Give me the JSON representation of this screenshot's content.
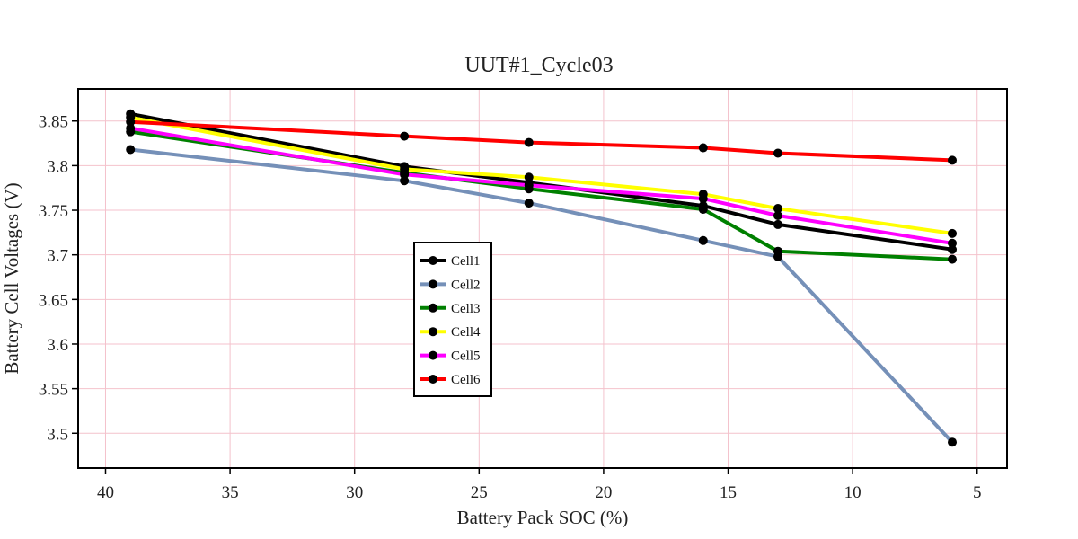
{
  "chart_data": {
    "type": "line",
    "title": "UUT#1_Cycle03",
    "xlabel": "Battery Pack SOC (%)",
    "ylabel": "Battery Cell Voltages (V)",
    "xlim": [
      41.1,
      3.8
    ],
    "ylim": [
      3.461,
      3.886
    ],
    "x_reversed": true,
    "xticks": [
      40,
      35,
      30,
      25,
      20,
      15,
      10,
      5
    ],
    "yticks": [
      3.5,
      3.55,
      3.6,
      3.65,
      3.7,
      3.75,
      3.8,
      3.85
    ],
    "ytick_labels": [
      "3.5",
      "3.55",
      "3.6",
      "3.65",
      "3.7",
      "3.75",
      "3.8",
      "3.85"
    ],
    "grid": true,
    "grid_color": "#f4c2cc",
    "marker_color": "#000000",
    "legend_placement": "center-left",
    "x": [
      39,
      28,
      23,
      16,
      13,
      6
    ],
    "series": [
      {
        "name": "Cell1",
        "color": "#000000",
        "values": [
          3.858,
          3.799,
          3.781,
          3.755,
          3.734,
          3.706
        ]
      },
      {
        "name": "Cell2",
        "color": "#7590b8",
        "values": [
          3.818,
          3.783,
          3.758,
          3.716,
          3.698,
          3.49
        ]
      },
      {
        "name": "Cell3",
        "color": "#008000",
        "values": [
          3.838,
          3.792,
          3.774,
          3.751,
          3.704,
          3.695
        ]
      },
      {
        "name": "Cell4",
        "color": "#ffff00",
        "values": [
          3.854,
          3.796,
          3.787,
          3.768,
          3.752,
          3.724
        ]
      },
      {
        "name": "Cell5",
        "color": "#ff00ff",
        "values": [
          3.842,
          3.79,
          3.778,
          3.763,
          3.744,
          3.713
        ]
      },
      {
        "name": "Cell6",
        "color": "#ff0000",
        "values": [
          3.849,
          3.833,
          3.826,
          3.82,
          3.814,
          3.806
        ]
      }
    ]
  }
}
